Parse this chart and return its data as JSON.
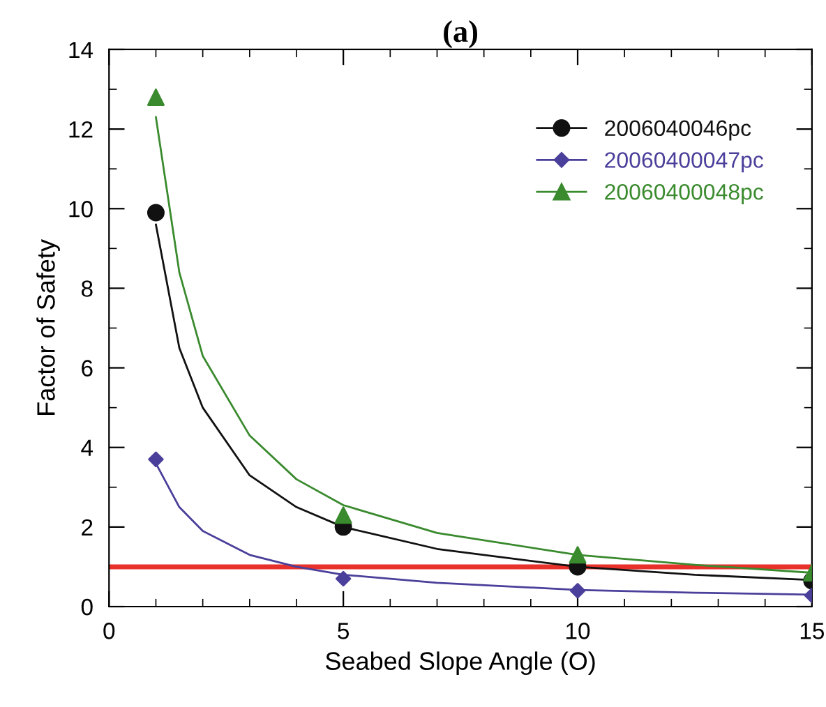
{
  "chart_data": {
    "type": "scatter",
    "title": "(a)",
    "xlabel": "Seabed Slope Angle (O)",
    "ylabel": "Factor of Safety",
    "xlim": [
      0,
      15
    ],
    "xticks": [
      0,
      5,
      10,
      15
    ],
    "ylim": [
      0,
      14
    ],
    "yticks": [
      0,
      2,
      4,
      6,
      8,
      10,
      12,
      14
    ],
    "grid": false,
    "legend": "top right",
    "series": [
      {
        "name": "2006040046pc",
        "marker": "circle",
        "color": "#111111",
        "x": [
          1,
          5,
          10,
          15
        ],
        "values": [
          9.9,
          2.0,
          1.0,
          0.65
        ]
      },
      {
        "name": "20060400047pc",
        "marker": "diamond",
        "color": "#4a3f9a",
        "x": [
          1,
          5,
          10,
          15
        ],
        "values": [
          3.7,
          0.7,
          0.4,
          0.28
        ]
      },
      {
        "name": "20060400048pc",
        "marker": "triangle",
        "color": "#3a8a2e",
        "x": [
          1,
          5,
          10,
          15
        ],
        "values": [
          12.8,
          2.3,
          1.3,
          0.85
        ]
      },
      {
        "type": "line",
        "marker": "none",
        "color": "#111111",
        "x": [
          1,
          1.5,
          2,
          3,
          4,
          5,
          7,
          10,
          12.5,
          15
        ],
        "values": [
          9.6,
          6.5,
          5.0,
          3.3,
          2.5,
          2.0,
          1.45,
          1.0,
          0.8,
          0.67
        ]
      },
      {
        "type": "line",
        "marker": "none",
        "color": "#4a3f9a",
        "x": [
          1,
          1.5,
          2,
          3,
          4,
          5,
          7,
          10,
          12.5,
          15
        ],
        "values": [
          3.6,
          2.5,
          1.9,
          1.3,
          1.0,
          0.8,
          0.6,
          0.42,
          0.35,
          0.3
        ]
      },
      {
        "type": "line",
        "marker": "none",
        "color": "#3a8a2e",
        "x": [
          1,
          1.5,
          2,
          3,
          4,
          5,
          7,
          10,
          12.5,
          15
        ],
        "values": [
          12.3,
          8.4,
          6.3,
          4.3,
          3.2,
          2.55,
          1.85,
          1.3,
          1.05,
          0.85
        ]
      }
    ],
    "ref_lines": [
      {
        "axis": "y",
        "value": 1,
        "color": "#e8312a"
      }
    ]
  }
}
